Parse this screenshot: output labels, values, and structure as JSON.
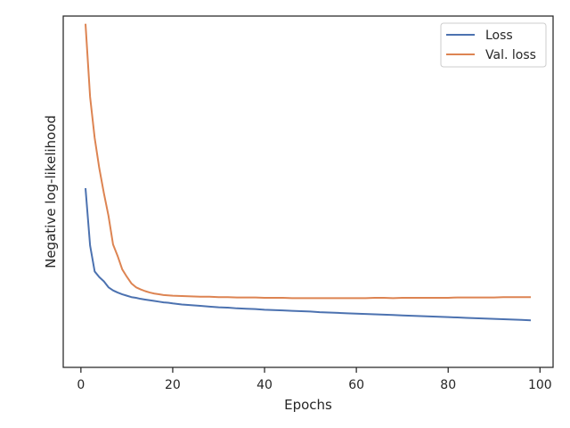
{
  "chart_data": {
    "type": "line",
    "title": "",
    "xlabel": "Epochs",
    "ylabel": "Negative log-likelihood",
    "xlim": [
      -3.85,
      102.85
    ],
    "ylim": [
      0,
      1
    ],
    "y_tick_labels_shown": false,
    "x_ticks": [
      0,
      20,
      40,
      60,
      80,
      100
    ],
    "x_tick_labels": [
      "0",
      "20",
      "40",
      "60",
      "80",
      "100"
    ],
    "grid": false,
    "legend_position": "top-right",
    "series": [
      {
        "name": "Loss",
        "color": "#4c72b0",
        "x": [
          1,
          2,
          3,
          4,
          5,
          6,
          7,
          8,
          9,
          10,
          11,
          12,
          13,
          14,
          15,
          16,
          17,
          18,
          19,
          20,
          22,
          24,
          26,
          28,
          30,
          32,
          34,
          36,
          38,
          40,
          42,
          44,
          46,
          48,
          50,
          52,
          54,
          56,
          58,
          60,
          62,
          64,
          66,
          68,
          70,
          72,
          74,
          76,
          78,
          80,
          82,
          84,
          86,
          88,
          90,
          92,
          94,
          96,
          98
        ],
        "y": [
          0.51,
          0.347,
          0.273,
          0.257,
          0.245,
          0.228,
          0.219,
          0.213,
          0.208,
          0.204,
          0.2,
          0.198,
          0.195,
          0.193,
          0.191,
          0.189,
          0.187,
          0.185,
          0.184,
          0.182,
          0.179,
          0.177,
          0.175,
          0.173,
          0.171,
          0.17,
          0.168,
          0.167,
          0.166,
          0.164,
          0.163,
          0.162,
          0.161,
          0.16,
          0.159,
          0.157,
          0.156,
          0.155,
          0.154,
          0.153,
          0.152,
          0.151,
          0.15,
          0.149,
          0.148,
          0.147,
          0.146,
          0.145,
          0.144,
          0.143,
          0.142,
          0.141,
          0.14,
          0.139,
          0.138,
          0.137,
          0.136,
          0.135,
          0.134
        ]
      },
      {
        "name": "Val. loss",
        "color": "#dd8452",
        "x": [
          1,
          2,
          3,
          4,
          5,
          6,
          7,
          8,
          9,
          10,
          11,
          12,
          13,
          14,
          15,
          16,
          17,
          18,
          19,
          20,
          22,
          24,
          26,
          28,
          30,
          32,
          34,
          36,
          38,
          40,
          42,
          44,
          46,
          48,
          50,
          52,
          54,
          56,
          58,
          60,
          62,
          64,
          66,
          68,
          70,
          72,
          74,
          76,
          78,
          80,
          82,
          84,
          86,
          88,
          90,
          92,
          94,
          96,
          98
        ],
        "y": [
          0.978,
          0.77,
          0.653,
          0.567,
          0.496,
          0.432,
          0.35,
          0.317,
          0.279,
          0.258,
          0.239,
          0.228,
          0.222,
          0.217,
          0.213,
          0.21,
          0.208,
          0.206,
          0.205,
          0.204,
          0.203,
          0.202,
          0.201,
          0.201,
          0.2,
          0.2,
          0.199,
          0.199,
          0.199,
          0.198,
          0.198,
          0.198,
          0.197,
          0.197,
          0.197,
          0.197,
          0.197,
          0.197,
          0.197,
          0.197,
          0.197,
          0.198,
          0.198,
          0.197,
          0.198,
          0.198,
          0.198,
          0.198,
          0.198,
          0.198,
          0.199,
          0.199,
          0.199,
          0.199,
          0.199,
          0.2,
          0.2,
          0.2,
          0.2
        ]
      }
    ]
  }
}
